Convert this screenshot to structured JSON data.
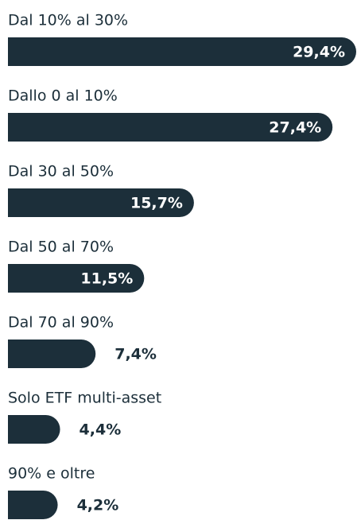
{
  "chart_data": {
    "type": "bar",
    "orientation": "horizontal",
    "color": "#1c2f3a",
    "categories": [
      "Dal 10% al 30%",
      "Dallo 0 al 10%",
      "Dal 30 al 50%",
      "Dal 50 al 70%",
      "Dal 70 al 90%",
      "Solo ETF multi-asset",
      "90% e oltre"
    ],
    "values": [
      29.4,
      27.4,
      15.7,
      11.5,
      7.4,
      4.4,
      4.2
    ],
    "value_labels": [
      "29,4%",
      "27,4%",
      "15,7%",
      "11,5%",
      "7,4%",
      "4,4%",
      "4,2%"
    ]
  }
}
